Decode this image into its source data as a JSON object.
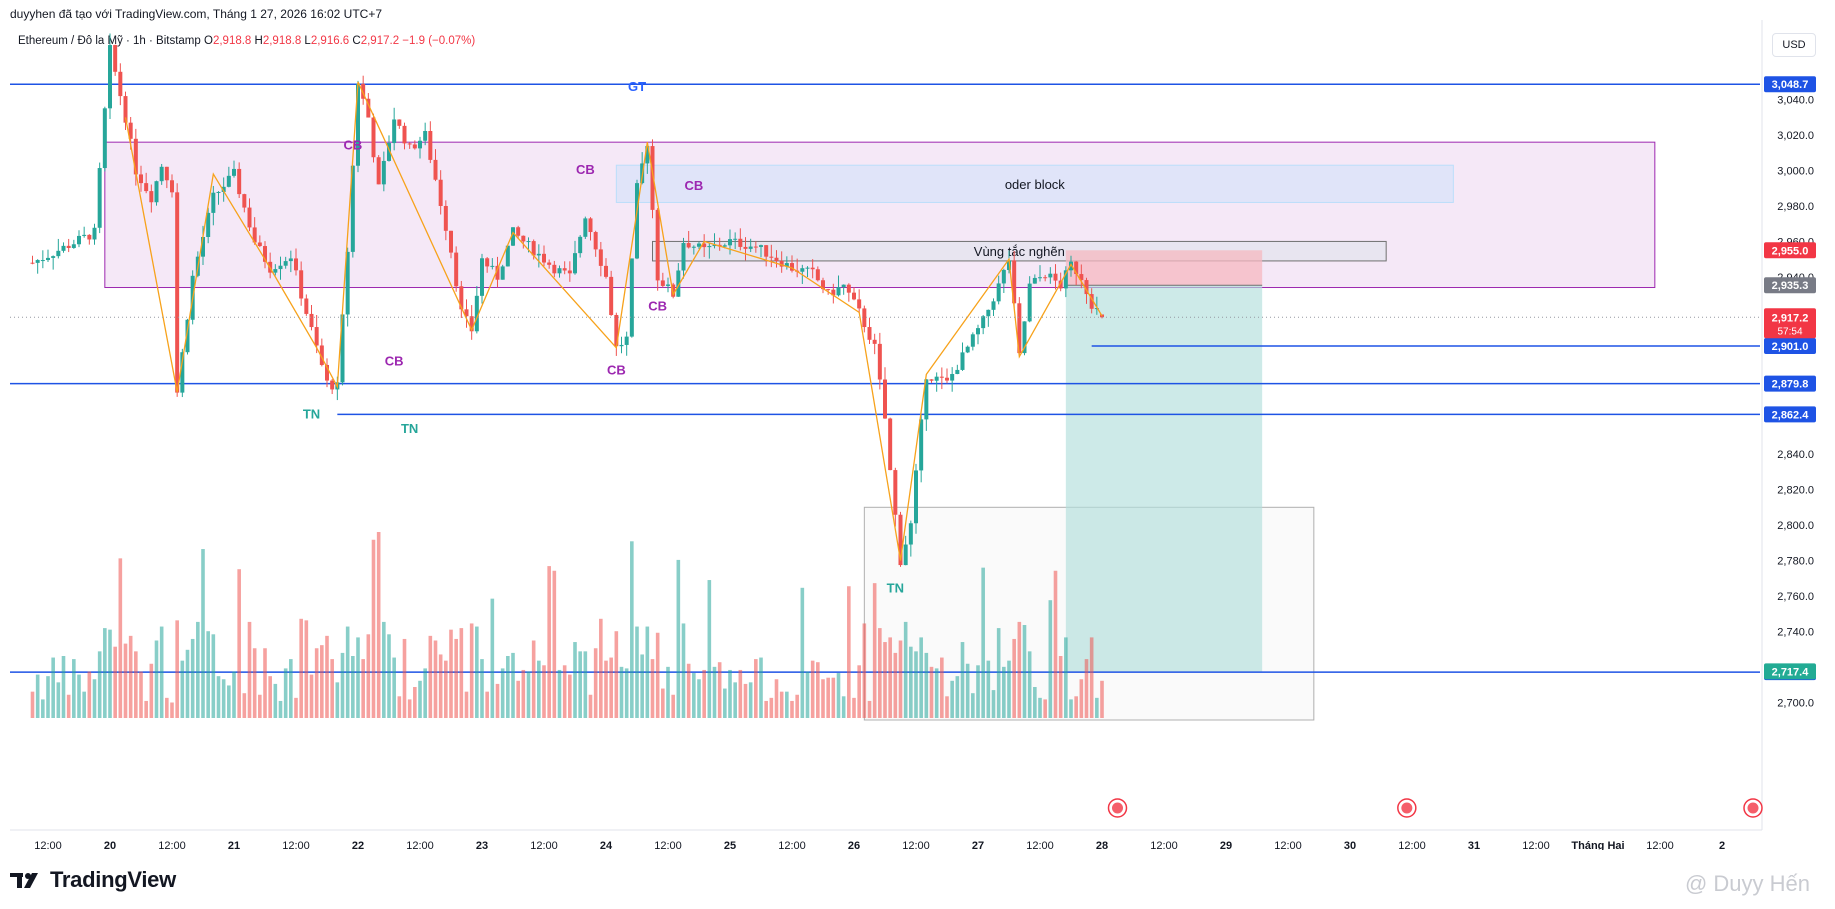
{
  "header": {
    "published": "duyyhen đã tạo với TradingView.com, Tháng 1 27, 2026 16:02 UTC+7",
    "symbol": "Ethereum / Đô la Mỹ · 1h · Bitstamp",
    "o_label": "O",
    "o_value": "2,918.8",
    "h_label": "H",
    "h_value": "2,918.8",
    "l_label": "L",
    "l_value": "2,916.6",
    "c_label": "C",
    "c_value": "2,917.2",
    "change": "−1.9 (−0.07%)"
  },
  "currency_button": "USD",
  "brand": "TradingView",
  "watermark": "@ Duyy Hến",
  "colors": {
    "up": "#26a69a",
    "down": "#ef5350",
    "line": "#1e53e5",
    "zigzag": "#f7a21b",
    "zone_purple": "#e1bee7",
    "profit": "#b2dfdb",
    "loss": "#f5b8c0"
  },
  "chart_data": {
    "type": "candlestick",
    "title": "Ethereum / Đô la Mỹ · 1h · Bitstamp",
    "ylim": [
      2690,
      3068
    ],
    "y_ticks": [
      "3,040.0",
      "3,020.0",
      "3,000.0",
      "2,980.0",
      "2,960.0",
      "2,940.0",
      "2,840.0",
      "2,820.0",
      "2,800.0",
      "2,780.0",
      "2,760.0",
      "2,740.0",
      "2,700.0"
    ],
    "y_tick_values": [
      3040,
      3020,
      3000,
      2980,
      2960,
      2940,
      2840,
      2820,
      2800,
      2780,
      2760,
      2740,
      2700
    ],
    "x_labels": [
      "12:00",
      "20",
      "12:00",
      "21",
      "12:00",
      "22",
      "12:00",
      "23",
      "12:00",
      "24",
      "12:00",
      "25",
      "12:00",
      "26",
      "12:00",
      "27",
      "12:00",
      "28",
      "12:00",
      "29",
      "12:00",
      "30",
      "12:00",
      "31",
      "12:00",
      "Tháng Hai",
      "12:00",
      "2"
    ],
    "x_label_hours": [
      -12,
      0,
      12,
      24,
      36,
      48,
      60,
      72,
      84,
      96,
      108,
      120,
      132,
      144,
      156,
      168,
      180,
      192,
      204,
      216,
      228,
      240,
      252,
      264,
      276,
      288,
      300,
      312
    ],
    "x_axis_origin": "20 00:00",
    "last_close": 2917.2,
    "countdown": "57:54",
    "price_lines": [
      {
        "price": 3048.7,
        "label": "3,048.7",
        "from_hour": -20
      },
      {
        "price": 2901.0,
        "label": "2,901.0",
        "from_hour": 190
      },
      {
        "price": 2879.8,
        "label": "2,879.8",
        "from_hour": -20
      },
      {
        "price": 2862.4,
        "label": "2,862.4",
        "from_hour": 44
      },
      {
        "price": 2717.0,
        "label": "2,717.0",
        "from_hour": -20
      }
    ],
    "position": {
      "entry": 2935.3,
      "entry_label": "2,935.3",
      "stop": 2955.0,
      "stop_label": "2,955.0",
      "target": 2717.4,
      "target_label": "2,717.4",
      "from_hour": 185,
      "to_hour": 223
    },
    "zones": [
      {
        "name": "CB-zone",
        "top": 3016,
        "bottom": 2934,
        "from_hour": -1,
        "to_hour": 299,
        "label": ""
      },
      {
        "name": "oder-block",
        "top": 3003,
        "bottom": 2982,
        "from_hour": 98,
        "to_hour": 260,
        "label": "oder block"
      },
      {
        "name": "vung-tac-nghen",
        "top": 2960,
        "bottom": 2949,
        "from_hour": 105,
        "to_hour": 247,
        "label": "Vùng tắc nghẽn"
      },
      {
        "name": "range-box",
        "top": 2810,
        "bottom": 2690,
        "from_hour": 146,
        "to_hour": 233,
        "label": ""
      }
    ],
    "annotations": [
      {
        "text": "GT",
        "hour": 102,
        "price": 3045,
        "color": "#2962ff"
      },
      {
        "text": "CB",
        "hour": 47,
        "price": 3012,
        "color": "#9c27b0"
      },
      {
        "text": "CB",
        "hour": 92,
        "price": 2998,
        "color": "#9c27b0"
      },
      {
        "text": "CB",
        "hour": 113,
        "price": 2989,
        "color": "#9c27b0"
      },
      {
        "text": "CB",
        "hour": 55,
        "price": 2890,
        "color": "#9c27b0"
      },
      {
        "text": "CB",
        "hour": 106,
        "price": 2921,
        "color": "#9c27b0"
      },
      {
        "text": "CB",
        "hour": 98,
        "price": 2885,
        "color": "#9c27b0"
      },
      {
        "text": "TN",
        "hour": 39,
        "price": 2860,
        "color": "#26a69a"
      },
      {
        "text": "TN",
        "hour": 58,
        "price": 2852,
        "color": "#26a69a"
      },
      {
        "text": "TN",
        "hour": 152,
        "price": 2762,
        "color": "#26a69a"
      }
    ],
    "candles_note": "synthesized hourly OHLC, hours 0-192 from 20 00:00",
    "candles": []
  }
}
